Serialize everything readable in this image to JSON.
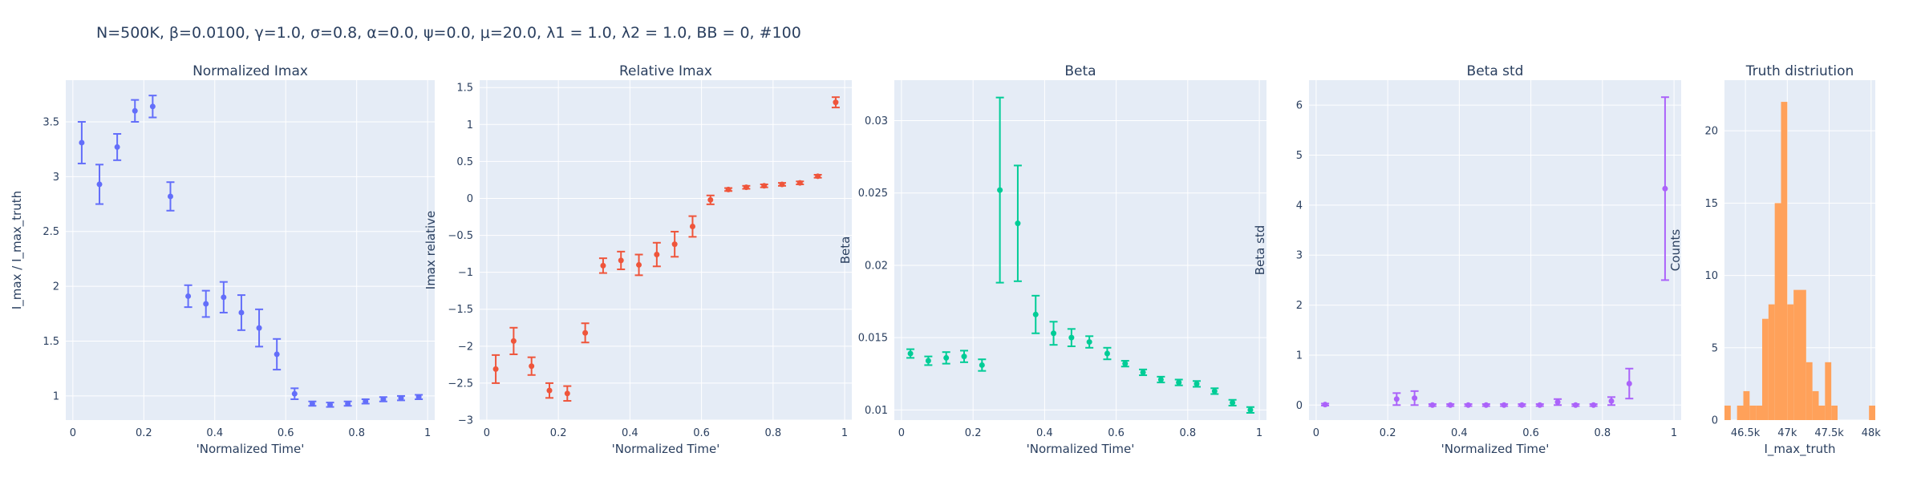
{
  "figure_title": "N=500K, β=0.0100, γ=1.0, σ=0.8,  α=0.0, ψ=0.0, μ=20.0, λ1 = 1.0, λ2 = 1.0, BB = 0, #100",
  "chart_data": [
    {
      "type": "scatter",
      "title": "Normalized Imax",
      "xlabel": "'Normalized Time'",
      "ylabel": "I_max / I_max_truth",
      "color": "#636efa",
      "xlim": [
        -0.02,
        1.02
      ],
      "ylim": [
        0.78,
        3.88
      ],
      "xticks": [
        0,
        0.2,
        0.4,
        0.6,
        0.8,
        1
      ],
      "xtick_labels": [
        "0",
        "0.2",
        "0.4",
        "0.6",
        "0.8",
        "1"
      ],
      "yticks": [
        1,
        1.5,
        2,
        2.5,
        3,
        3.5
      ],
      "ytick_labels": [
        "1",
        "1.5",
        "2",
        "2.5",
        "3",
        "3.5"
      ],
      "grid": true,
      "x": [
        0.025,
        0.075,
        0.125,
        0.175,
        0.225,
        0.275,
        0.325,
        0.375,
        0.425,
        0.475,
        0.525,
        0.575,
        0.625,
        0.675,
        0.725,
        0.775,
        0.825,
        0.875,
        0.925,
        0.975
      ],
      "y": [
        3.31,
        2.93,
        3.27,
        3.6,
        3.64,
        2.82,
        1.91,
        1.84,
        1.9,
        1.76,
        1.62,
        1.38,
        1.02,
        0.93,
        0.92,
        0.93,
        0.95,
        0.97,
        0.98,
        0.99
      ],
      "err": [
        0.19,
        0.18,
        0.12,
        0.1,
        0.1,
        0.13,
        0.1,
        0.12,
        0.14,
        0.16,
        0.17,
        0.14,
        0.05,
        0.02,
        0.02,
        0.02,
        0.02,
        0.02,
        0.02,
        0.02
      ]
    },
    {
      "type": "scatter",
      "title": "Relative Imax",
      "xlabel": "'Normalized Time'",
      "ylabel": "Imax relative",
      "color": "#ef553b",
      "xlim": [
        -0.02,
        1.02
      ],
      "ylim": [
        -3.0,
        1.6
      ],
      "xticks": [
        0,
        0.2,
        0.4,
        0.6,
        0.8,
        1
      ],
      "xtick_labels": [
        "0",
        "0.2",
        "0.4",
        "0.6",
        "0.8",
        "1"
      ],
      "yticks": [
        -3,
        -2.5,
        -2,
        -1.5,
        -1,
        -0.5,
        0,
        0.5,
        1,
        1.5
      ],
      "ytick_labels": [
        "−3",
        "−2.5",
        "−2",
        "−1.5",
        "−1",
        "−0.5",
        "0",
        "0.5",
        "1",
        "1.5"
      ],
      "grid": true,
      "x": [
        0.025,
        0.075,
        0.125,
        0.175,
        0.225,
        0.275,
        0.325,
        0.375,
        0.425,
        0.475,
        0.525,
        0.575,
        0.625,
        0.675,
        0.725,
        0.775,
        0.825,
        0.875,
        0.925,
        0.975
      ],
      "y": [
        -2.31,
        -1.93,
        -2.27,
        -2.6,
        -2.64,
        -1.82,
        -0.91,
        -0.84,
        -0.9,
        -0.76,
        -0.62,
        -0.38,
        -0.02,
        0.12,
        0.15,
        0.17,
        0.19,
        0.21,
        0.3,
        1.3
      ],
      "err": [
        0.19,
        0.18,
        0.12,
        0.1,
        0.1,
        0.13,
        0.1,
        0.12,
        0.14,
        0.16,
        0.17,
        0.14,
        0.06,
        0.02,
        0.02,
        0.02,
        0.02,
        0.02,
        0.02,
        0.07
      ]
    },
    {
      "type": "scatter",
      "title": "Beta",
      "xlabel": "'Normalized Time'",
      "ylabel": "Beta",
      "color": "#00cc96",
      "xlim": [
        -0.02,
        1.02
      ],
      "ylim": [
        0.0093,
        0.0328
      ],
      "xticks": [
        0,
        0.2,
        0.4,
        0.6,
        0.8,
        1
      ],
      "xtick_labels": [
        "0",
        "0.2",
        "0.4",
        "0.6",
        "0.8",
        "1"
      ],
      "yticks": [
        0.01,
        0.015,
        0.02,
        0.025,
        0.03
      ],
      "ytick_labels": [
        "0.01",
        "0.015",
        "0.02",
        "0.025",
        "0.03"
      ],
      "grid": true,
      "x": [
        0.025,
        0.075,
        0.125,
        0.175,
        0.225,
        0.275,
        0.325,
        0.375,
        0.425,
        0.475,
        0.525,
        0.575,
        0.625,
        0.675,
        0.725,
        0.775,
        0.825,
        0.875,
        0.925,
        0.975
      ],
      "y": [
        0.0139,
        0.0134,
        0.0136,
        0.0137,
        0.0131,
        0.0252,
        0.0229,
        0.0166,
        0.0153,
        0.015,
        0.0147,
        0.0139,
        0.0132,
        0.0126,
        0.0121,
        0.0119,
        0.0118,
        0.0113,
        0.0105,
        0.01
      ],
      "err": [
        0.0003,
        0.0003,
        0.0004,
        0.0004,
        0.0004,
        0.0064,
        0.004,
        0.0013,
        0.0008,
        0.0006,
        0.0004,
        0.0004,
        0.0002,
        0.0002,
        0.0002,
        0.0002,
        0.0002,
        0.0002,
        0.0002,
        0.0002
      ]
    },
    {
      "type": "scatter",
      "title": "Beta std",
      "xlabel": "'Normalized Time'",
      "ylabel": "Beta std",
      "color": "#ab63fa",
      "xlim": [
        -0.02,
        1.02
      ],
      "ylim": [
        -0.3,
        6.5
      ],
      "xticks": [
        0,
        0.2,
        0.4,
        0.6,
        0.8,
        1
      ],
      "xtick_labels": [
        "0",
        "0.2",
        "0.4",
        "0.6",
        "0.8",
        "1"
      ],
      "yticks": [
        0,
        1,
        2,
        3,
        4,
        5,
        6
      ],
      "ytick_labels": [
        "0",
        "1",
        "2",
        "3",
        "4",
        "5",
        "6"
      ],
      "grid": true,
      "x": [
        0.025,
        0.225,
        0.275,
        0.325,
        0.375,
        0.425,
        0.475,
        0.525,
        0.575,
        0.625,
        0.675,
        0.725,
        0.775,
        0.825,
        0.875,
        0.975
      ],
      "y": [
        0.01,
        0.12,
        0.14,
        0.0,
        0.0,
        0.0,
        0.0,
        0.0,
        0.0,
        0.0,
        0.06,
        0.0,
        0.0,
        0.08,
        0.43,
        4.33
      ],
      "err": [
        0.02,
        0.12,
        0.14,
        0.02,
        0.02,
        0.02,
        0.02,
        0.02,
        0.02,
        0.02,
        0.06,
        0.02,
        0.02,
        0.08,
        0.3,
        1.83
      ]
    },
    {
      "type": "bar",
      "title": "Truth distriution",
      "xlabel": "I_max_truth",
      "ylabel": "Counts",
      "color": "#ffa15a",
      "xlim": [
        46250,
        48050
      ],
      "ylim": [
        0,
        23.5
      ],
      "xticks": [
        46500,
        47000,
        47500,
        48000
      ],
      "xtick_labels": [
        "46.5k",
        "47k",
        "47.5k",
        "48k"
      ],
      "yticks": [
        0,
        5,
        10,
        15,
        20
      ],
      "ytick_labels": [
        "0",
        "5",
        "10",
        "15",
        "20"
      ],
      "grid": true,
      "bin_width": 75,
      "bins": [
        46250,
        46325,
        46400,
        46475,
        46550,
        46625,
        46700,
        46775,
        46850,
        46925,
        47000,
        47075,
        47150,
        47225,
        47300,
        47375,
        47450,
        47525,
        47600,
        47675,
        47750,
        47825,
        47900,
        47975
      ],
      "values": [
        1,
        0,
        1,
        2,
        1,
        1,
        7,
        8,
        15,
        22,
        8,
        9,
        9,
        4,
        2,
        1,
        4,
        1,
        0,
        0,
        0,
        0,
        0,
        1
      ]
    }
  ]
}
